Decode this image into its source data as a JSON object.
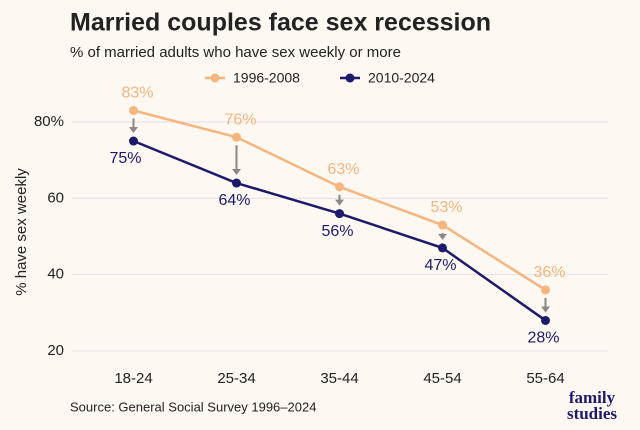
{
  "chart_data": {
    "type": "line",
    "title": "Married couples face sex recession",
    "subtitle": "% of married adults who have sex weekly or more",
    "y_label": "% have sex weekly",
    "source": "Source: General Social Survey 1996–2024",
    "logo": [
      "family",
      "studies"
    ],
    "categories": [
      "18-24",
      "25-34",
      "35-44",
      "45-54",
      "55-64"
    ],
    "series": [
      {
        "name": "1996-2008",
        "color": "#f5b57f",
        "values": [
          83,
          76,
          63,
          53,
          36
        ],
        "value_labels": [
          "83%",
          "76%",
          "63%",
          "53%",
          "36%"
        ]
      },
      {
        "name": "2010-2024",
        "color": "#1e1a6b",
        "values": [
          75,
          64,
          56,
          47,
          28
        ],
        "value_labels": [
          "75%",
          "64%",
          "56%",
          "47%",
          "28%"
        ]
      }
    ],
    "ylim": [
      20,
      88
    ],
    "yticks": [
      20,
      40,
      60,
      {
        "value": 80,
        "label": "80%"
      }
    ],
    "grid": true,
    "legend": "top"
  }
}
